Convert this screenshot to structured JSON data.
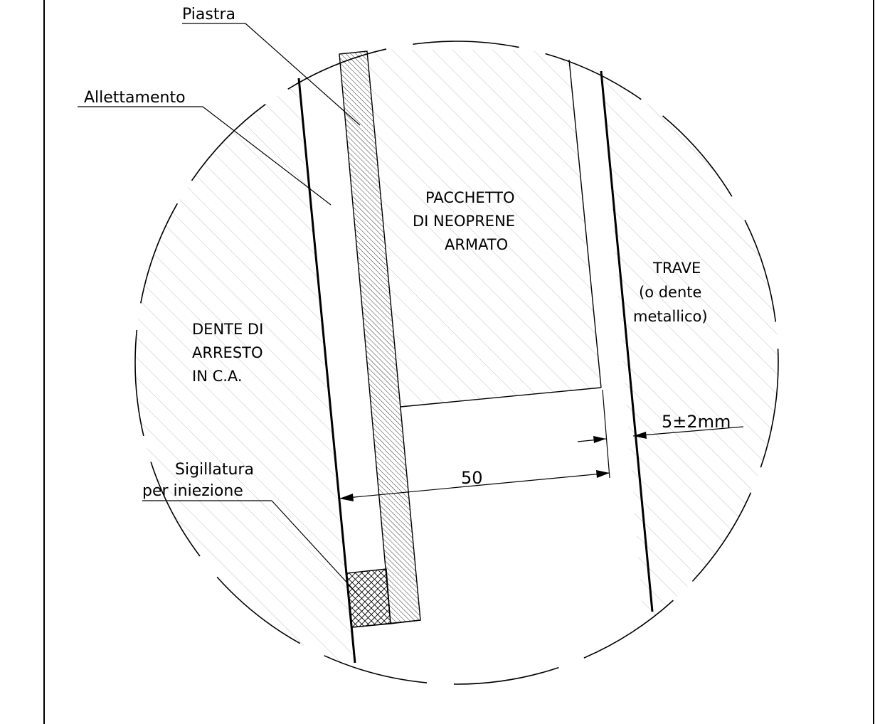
{
  "labels": {
    "piastra": "Piastra",
    "allettamento": "Allettamento",
    "pacchetto": [
      "PACCHETTO",
      "DI NEOPRENE",
      "ARMATO"
    ],
    "trave": [
      "TRAVE",
      "(o dente",
      "metallico)"
    ],
    "dente": [
      "DENTE DI",
      "ARRESTO",
      "IN C.A."
    ],
    "sigillatura": [
      "Sigillatura",
      "per iniezione"
    ]
  },
  "dimensions": {
    "width": "50",
    "gap": "5±2mm"
  },
  "colors": {
    "line": "#000000",
    "hatch": "#b5b5b5",
    "background": "#ffffff"
  }
}
